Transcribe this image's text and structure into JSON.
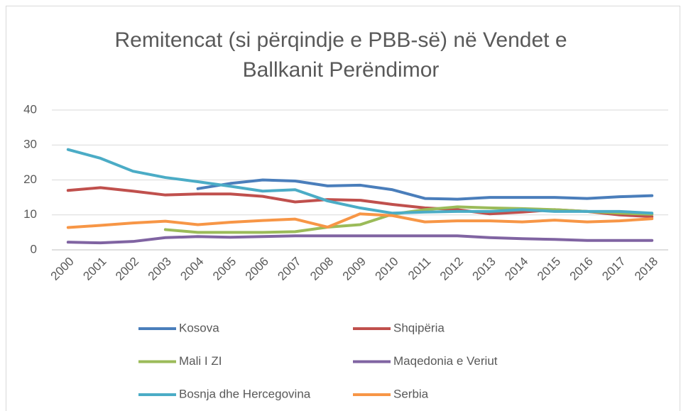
{
  "chart_data": {
    "type": "line",
    "title": "Remitencat (si përqindje e PBB-së) në Vendet e Ballkanit Perëndimor",
    "categories": [
      "2000",
      "2001",
      "2002",
      "2003",
      "2004",
      "2005",
      "2006",
      "2007",
      "2008",
      "2009",
      "2010",
      "2011",
      "2012",
      "2013",
      "2014",
      "2015",
      "2016",
      "2017",
      "2018"
    ],
    "series": [
      {
        "name": "Kosova",
        "color": "#4a7ebb",
        "values": [
          null,
          null,
          null,
          null,
          17.5,
          19,
          20,
          19.7,
          18.3,
          18.5,
          17.2,
          14.7,
          14.5,
          15,
          15,
          15,
          14.7,
          15.2,
          15.5
        ]
      },
      {
        "name": "Shqipëria",
        "color": "#c0504d",
        "values": [
          17,
          17.8,
          16.8,
          15.7,
          16,
          16,
          15.3,
          13.7,
          14.4,
          14.2,
          13,
          12,
          11.5,
          10.3,
          10.8,
          11.5,
          11,
          10,
          9.5
        ]
      },
      {
        "name": "Mali I ZI",
        "color": "#9bbb59",
        "values": [
          null,
          null,
          null,
          5.8,
          5,
          5,
          5,
          5.2,
          6.5,
          7.2,
          10.2,
          11.5,
          12.3,
          12,
          11.8,
          11.5,
          11,
          10.5,
          10.2
        ]
      },
      {
        "name": "Maqedonia e Veriut",
        "color": "#8064a2",
        "values": [
          2.2,
          2,
          2.4,
          3.5,
          3.8,
          3.6,
          3.8,
          4,
          4,
          4,
          4,
          4,
          4,
          3.5,
          3.2,
          3,
          2.7,
          2.7,
          2.7
        ]
      },
      {
        "name": "Bosnja dhe Hercegovina",
        "color": "#4bacc6",
        "values": [
          28.7,
          26.2,
          22.5,
          20.7,
          19.5,
          18.2,
          16.8,
          17.2,
          14,
          12,
          10.5,
          10.8,
          11,
          11,
          11.5,
          11,
          11,
          11,
          10.5
        ]
      },
      {
        "name": "Serbia",
        "color": "#f79646",
        "values": [
          6.4,
          7,
          7.7,
          8.2,
          7.2,
          7.9,
          8.4,
          8.8,
          6.5,
          10.3,
          9.8,
          8,
          8.3,
          8.3,
          8,
          8.5,
          8,
          8.3,
          8.9
        ]
      }
    ],
    "ylim": [
      0,
      40
    ],
    "yticks": [
      0,
      10,
      20,
      30,
      40
    ],
    "grid": true
  }
}
